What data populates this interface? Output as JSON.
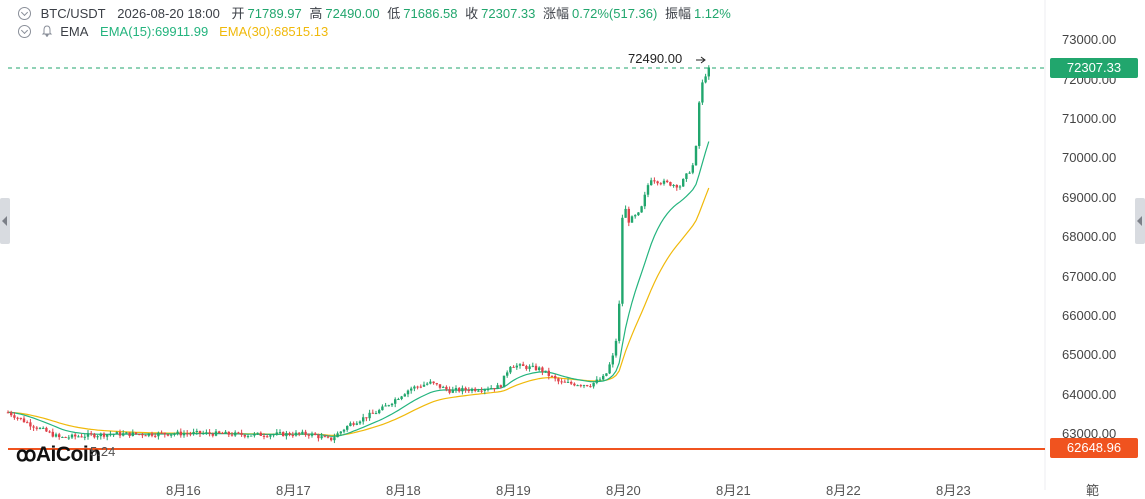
{
  "header": {
    "pair": "BTC/USDT",
    "datetime": "2026-08-20 18:00",
    "open_label": "开",
    "open": "71789.97",
    "high_label": "高",
    "high": "72490.00",
    "low_label": "低",
    "low": "71686.58",
    "close_label": "收",
    "close": "72307.33",
    "change_label": "涨幅",
    "change": "0.72%(517.36)",
    "amp_label": "振幅",
    "amp": "1.12%"
  },
  "ema": {
    "name": "EMA",
    "ema15": "EMA(15):69911.99",
    "ema30": "EMA(30):68515.13"
  },
  "y_axis": [
    "73000.00",
    "72000.00",
    "71000.00",
    "70000.00",
    "69000.00",
    "68000.00",
    "67000.00",
    "66000.00",
    "65000.00",
    "64000.00",
    "63000.00"
  ],
  "current_price": "72307.33",
  "low_line_price": "62648.96",
  "high_marker": "72490.00",
  "x_axis": [
    "8月16",
    "8月17",
    "8月18",
    "8月19",
    "8月20",
    "8月21",
    "8月22",
    "8月23",
    "範"
  ],
  "logo": "AiCoin",
  "logo_sub": "5.24",
  "colors": {
    "up": "#21a66d",
    "down": "#e0424a",
    "ema15": "#24b47e",
    "ema30": "#f0b90b",
    "price_tag": "#21a66d",
    "low_tag": "#f0531f"
  }
}
